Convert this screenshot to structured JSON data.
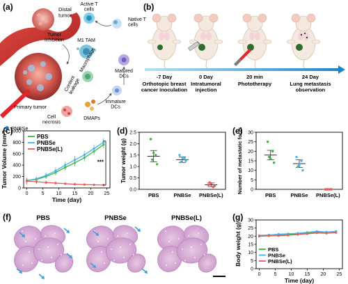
{
  "panels": {
    "a": {
      "letter": "(a)",
      "labels": {
        "distal_tumor": "Distal\ntumor",
        "active_t": "Active T\ncells",
        "native_t": "Native T\ncells",
        "tumor_inhibition": "Tumor\ninhibition",
        "m1_tam": "M1 TAM",
        "macrophage": "Macrophage",
        "matured_dcs": "Matured\nDCs",
        "content_leakage": "Content\nleakage",
        "immature_dcs": "Immature\nDCs",
        "primary_tumor": "Primary tumor",
        "damps": "DMAPs",
        "cell_necrosis": "Cell\nnecrosis",
        "pnbse": "PNBSe"
      }
    },
    "b": {
      "letter": "(b)",
      "timeline": [
        {
          "day": "-7 Day",
          "desc": "Orthotopic breast\ncancer inoculation"
        },
        {
          "day": "0 Day",
          "desc": "Intratumoral\ninjection"
        },
        {
          "day": "20 min",
          "desc": "Phototherapy"
        },
        {
          "day": "24 Day",
          "desc": "Lung metastasis\nobservation"
        }
      ]
    },
    "c": {
      "letter": "(c)",
      "significance": "***"
    },
    "d": {
      "letter": "(d)"
    },
    "e": {
      "letter": "(e)"
    },
    "f": {
      "letter": "(f)",
      "titles": [
        "PBS",
        "PNBSe",
        "PNBSe(L)"
      ]
    },
    "g": {
      "letter": "(g)"
    }
  },
  "colors": {
    "pbs": "#3cb44b",
    "pnbse": "#42b4e6",
    "pnbse_l": "#e8585a"
  },
  "chart_data": [
    {
      "id": "c",
      "type": "line",
      "xlabel": "Time (day)",
      "ylabel": "Tumor Volume (mm³)",
      "xlim": [
        -1,
        26
      ],
      "ylim": [
        0,
        1000
      ],
      "xticks": [
        0,
        5,
        10,
        15,
        20,
        25
      ],
      "yticks": [
        0,
        200,
        400,
        600,
        800,
        1000
      ],
      "legend": "top-left",
      "x": [
        0,
        3,
        6,
        9,
        12,
        15,
        18,
        21,
        24
      ],
      "series": [
        {
          "name": "PBS",
          "values": [
            130,
            150,
            200,
            270,
            360,
            440,
            530,
            640,
            760
          ],
          "err": [
            40,
            30,
            40,
            50,
            50,
            60,
            60,
            60,
            60
          ]
        },
        {
          "name": "PNBSe",
          "values": [
            130,
            160,
            220,
            300,
            400,
            490,
            580,
            690,
            800
          ],
          "err": [
            40,
            40,
            50,
            60,
            60,
            70,
            70,
            70,
            70
          ]
        },
        {
          "name": "PNBSe(L)",
          "values": [
            120,
            110,
            95,
            85,
            75,
            65,
            60,
            55,
            50
          ],
          "err": [
            60,
            40,
            30,
            25,
            20,
            20,
            20,
            20,
            20
          ]
        }
      ]
    },
    {
      "id": "d",
      "type": "scatter",
      "ylabel": "Tumor weight (g)",
      "ylim": [
        0,
        2.5
      ],
      "yticks": [
        "0.0",
        "0.5",
        "1.0",
        "1.5",
        "2.0",
        "2.5"
      ],
      "categories": [
        "PBS",
        "PNBSe",
        "PNBSe(L)"
      ],
      "means": [
        1.45,
        1.3,
        0.2
      ],
      "err": [
        0.25,
        0.12,
        0.08
      ],
      "points": [
        [
          2.2,
          1.5,
          1.3,
          1.1,
          1.6
        ],
        [
          1.5,
          1.35,
          1.2,
          1.25,
          1.4
        ],
        [
          0.2,
          0.1,
          0.3,
          0.15,
          0.25
        ]
      ]
    },
    {
      "id": "e",
      "type": "scatter",
      "ylabel": "Number of metastatic focis",
      "ylim": [
        0,
        30
      ],
      "yticks": [
        "0",
        "5",
        "10",
        "15",
        "20",
        "25",
        "30"
      ],
      "categories": [
        "PBS",
        "PNBSe",
        "PNBSe(L)"
      ],
      "means": [
        18,
        13.5,
        0
      ],
      "err": [
        2.5,
        2,
        0.2
      ],
      "points": [
        [
          25,
          20,
          17,
          14,
          16
        ],
        [
          17,
          15,
          12,
          10,
          13
        ],
        [
          0,
          0,
          0,
          0,
          0
        ]
      ]
    },
    {
      "id": "g",
      "type": "line",
      "xlabel": "Time (day)",
      "ylabel": "Body weight (g)",
      "xlim": [
        -1,
        26
      ],
      "ylim": [
        0,
        30
      ],
      "xticks": [
        0,
        5,
        10,
        15,
        20,
        25
      ],
      "yticks": [
        0,
        5,
        10,
        15,
        20,
        25,
        30
      ],
      "legend": "bottom-left",
      "x": [
        0,
        3,
        6,
        9,
        12,
        15,
        18,
        21,
        24
      ],
      "series": [
        {
          "name": "PBS",
          "values": [
            20,
            20.3,
            20.6,
            21,
            21.5,
            22,
            22.5,
            22,
            22.5
          ]
        },
        {
          "name": "PNBSe",
          "values": [
            20.5,
            20.8,
            21.2,
            21.5,
            21.8,
            22.4,
            23,
            22.6,
            23
          ]
        },
        {
          "name": "PNBSe(L)",
          "values": [
            20,
            20.2,
            20.3,
            20.6,
            21,
            21.5,
            22,
            21.8,
            22.2
          ]
        }
      ]
    }
  ]
}
